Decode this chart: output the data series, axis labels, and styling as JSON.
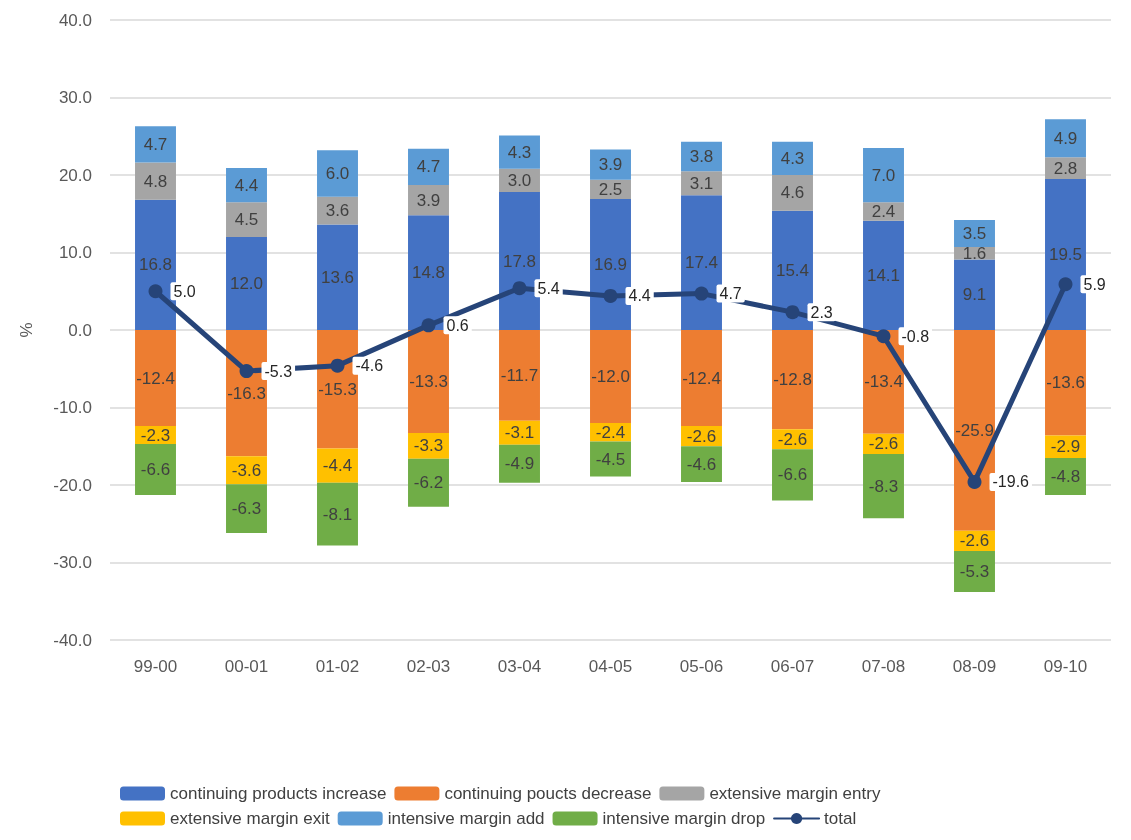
{
  "chart_data": {
    "type": "bar",
    "stacked": true,
    "ylabel": "%",
    "categories": [
      "99-00",
      "00-01",
      "01-02",
      "02-03",
      "03-04",
      "04-05",
      "05-06",
      "06-07",
      "07-08",
      "08-09",
      "09-10"
    ],
    "ylim": [
      -40,
      40
    ],
    "yticks": [
      {
        "value": -40,
        "label": "-40.0"
      },
      {
        "value": -30,
        "label": "-30.0"
      },
      {
        "value": -20,
        "label": "-20.0"
      },
      {
        "value": -10,
        "label": "-10.0"
      },
      {
        "value": 0,
        "label": "0.0"
      },
      {
        "value": 10,
        "label": "10.0"
      },
      {
        "value": 20,
        "label": "20.0"
      },
      {
        "value": 30,
        "label": "30.0"
      },
      {
        "value": 40,
        "label": "40.0"
      }
    ],
    "grid": "y",
    "legend": "bottom",
    "series": [
      {
        "name": "continuing products increase",
        "color": "#4472c4",
        "values": [
          16.8,
          12.0,
          13.6,
          14.8,
          17.8,
          16.9,
          17.4,
          15.4,
          14.1,
          9.1,
          19.5
        ],
        "value_labels": [
          "16.8",
          "12.0",
          "13.6",
          "14.8",
          "17.8",
          "16.9",
          "17.4",
          "15.4",
          "14.1",
          "9.1",
          "19.5"
        ]
      },
      {
        "name": "continuing poucts decrease",
        "color": "#ed7d31",
        "values": [
          -12.4,
          -16.3,
          -15.3,
          -13.3,
          -11.7,
          -12.0,
          -12.4,
          -12.8,
          -13.4,
          -25.9,
          -13.6
        ],
        "value_labels": [
          "-12.4",
          "-16.3",
          "-15.3",
          "-13.3",
          "-11.7",
          "-12.0",
          "-12.4",
          "-12.8",
          "-13.4",
          "-25.9",
          "-13.6"
        ]
      },
      {
        "name": "extensive margin entry",
        "color": "#a5a5a5",
        "values": [
          4.8,
          4.5,
          3.6,
          3.9,
          3.0,
          2.5,
          3.1,
          4.6,
          2.4,
          1.6,
          2.8
        ],
        "value_labels": [
          "4.8",
          "4.5",
          "3.6",
          "3.9",
          "3.0",
          "2.5",
          "3.1",
          "4.6",
          "2.4",
          "1.6",
          "2.8"
        ]
      },
      {
        "name": "extensive margin exit",
        "color": "#ffc000",
        "values": [
          -2.3,
          -3.6,
          -4.4,
          -3.3,
          -3.1,
          -2.4,
          -2.6,
          -2.6,
          -2.6,
          -2.6,
          -2.9
        ],
        "value_labels": [
          "-2.3",
          "-3.6",
          "-4.4",
          "-3.3",
          "-3.1",
          "-2.4",
          "-2.6",
          "-2.6",
          "-2.6",
          "-2.6",
          "-2.9"
        ]
      },
      {
        "name": "intensive margin add",
        "color": "#5b9bd5",
        "values": [
          4.7,
          4.4,
          6.0,
          4.7,
          4.3,
          3.9,
          3.8,
          4.3,
          7.0,
          3.5,
          4.9
        ],
        "value_labels": [
          "4.7",
          "4.4",
          "6.0",
          "4.7",
          "4.3",
          "3.9",
          "3.8",
          "4.3",
          "7.0",
          "3.5",
          "4.9"
        ]
      },
      {
        "name": "intensive margin drop",
        "color": "#70ad47",
        "values": [
          -6.6,
          -6.3,
          -8.1,
          -6.2,
          -4.9,
          -4.5,
          -4.6,
          -6.6,
          -8.3,
          -5.3,
          -4.8
        ],
        "value_labels": [
          "-6.6",
          "-6.3",
          "-8.1",
          "-6.2",
          "-4.9",
          "-4.5",
          "-4.6",
          "-6.6",
          "-8.3",
          "-5.3",
          "-4.8"
        ]
      },
      {
        "name": "total",
        "type": "line",
        "color": "#264478",
        "marker": "circle",
        "values": [
          5.0,
          -5.3,
          -4.6,
          0.6,
          5.4,
          4.4,
          4.7,
          2.3,
          -0.8,
          -19.6,
          5.9
        ],
        "value_labels": [
          "5.0",
          "-5.3",
          "-4.6",
          "0.6",
          "5.4",
          "4.4",
          "4.7",
          "2.3",
          "-0.8",
          "-19.6",
          "5.9"
        ]
      }
    ]
  }
}
